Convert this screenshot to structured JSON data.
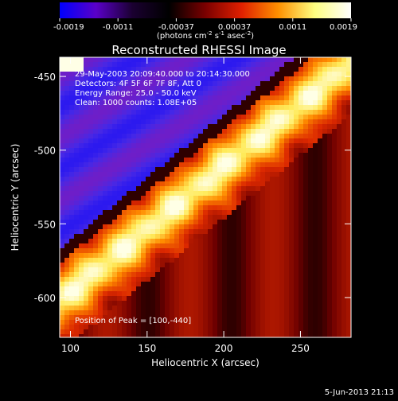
{
  "colorbar": {
    "ticks": [
      "-0.0019",
      "-0.0011",
      "-0.00037",
      "0.00037",
      "0.0011",
      "0.0019"
    ],
    "units_prefix": "(photons cm",
    "units_exp1": "-2",
    "units_mid": " s",
    "units_exp2": "-1",
    "units_mid2": " asec",
    "units_exp3": "-2",
    "units_suffix": ")",
    "colors": [
      "#0000ff",
      "#5a00c8",
      "#1a0030",
      "#000000",
      "#7a0000",
      "#e02000",
      "#ff9000",
      "#ffff80",
      "#ffffff"
    ]
  },
  "annotations": {
    "time_range": "29-May-2003 20:09:40.000 to 20:14:30.000",
    "detectors": "Detectors: 4F 5F 6F 7F 8F, Att 0",
    "energy": "Energy Range: 25.0 - 50.0 keV",
    "clean": "Clean: 1000 counts: 1.08E+05",
    "peak": "Position of Peak = [100,-440]"
  },
  "footer": {
    "date": "5-Jun-2013 21:13"
  },
  "chart_data": {
    "type": "heatmap",
    "title": "Reconstructed RHESSI Image",
    "xlabel": "Heliocentric X (arcsec)",
    "ylabel": "Heliocentric Y (arcsec)",
    "xlim": [
      93,
      283
    ],
    "ylim": [
      -627,
      -437
    ],
    "x_ticks": [
      100,
      150,
      200,
      250
    ],
    "y_ticks": [
      -450,
      -500,
      -550,
      -600
    ],
    "color_range": [
      -0.0019,
      0.0019
    ],
    "peak_position": [
      100,
      -440
    ]
  }
}
